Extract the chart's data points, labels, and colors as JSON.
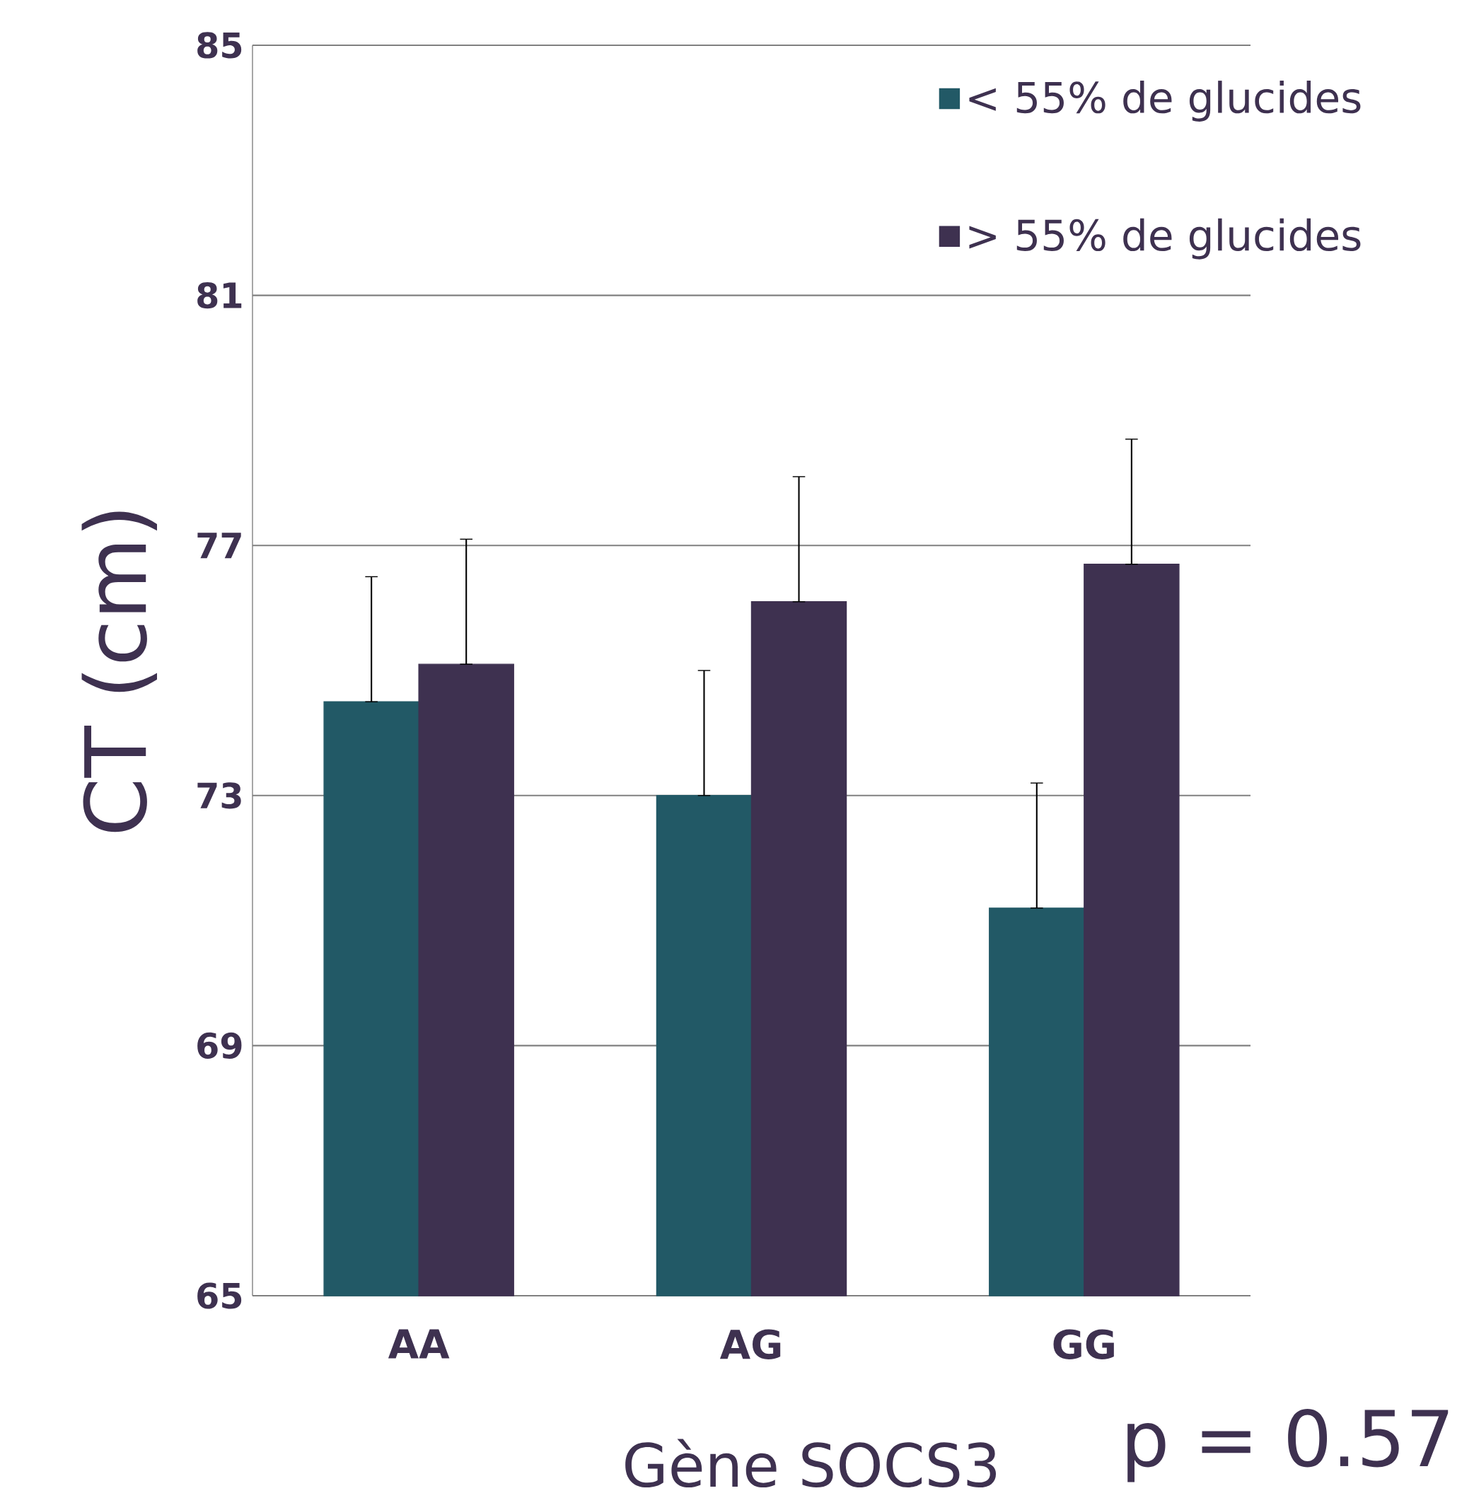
{
  "chart_data": {
    "type": "bar",
    "xlabel": "Gène SOCS3",
    "ylabel": "CT (cm)",
    "categories": [
      "AA",
      "AG",
      "GG"
    ],
    "series": [
      {
        "name": "< 55% de glucides",
        "color": "#225966",
        "values": [
          74.5,
          73.0,
          71.2
        ],
        "errors": [
          [
            74.5,
            76.5
          ],
          [
            73.0,
            75.0
          ],
          [
            71.2,
            73.2
          ]
        ]
      },
      {
        "name": "> 55% de glucides",
        "color": "#3e3150",
        "values": [
          75.1,
          76.1,
          76.7
        ],
        "errors": [
          [
            75.1,
            77.1
          ],
          [
            76.1,
            78.1
          ],
          [
            76.7,
            78.7
          ]
        ]
      }
    ],
    "ylim": [
      65,
      85
    ],
    "yticks": [
      65,
      69,
      73,
      77,
      81,
      85
    ],
    "grid": "y",
    "legend": "top right",
    "annotations": [
      "p = 0.57"
    ]
  }
}
